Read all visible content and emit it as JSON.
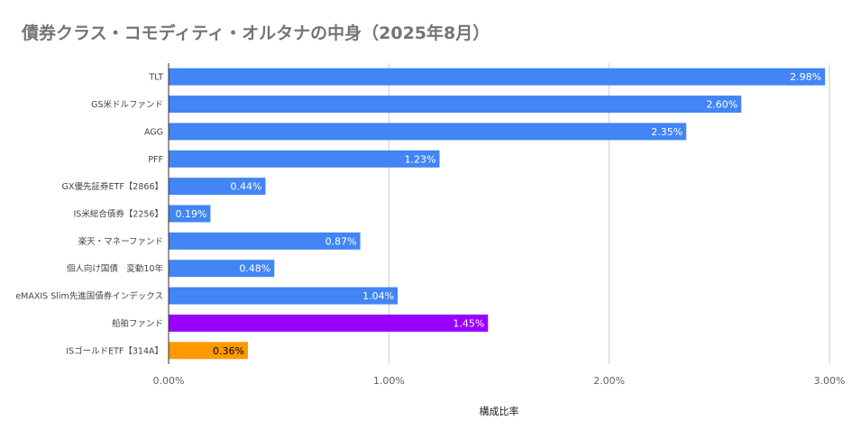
{
  "chart_data": {
    "type": "bar",
    "orientation": "horizontal",
    "title": "債券クラス・コモディティ・オルタナの中身（2025年8月）",
    "xlabel": "構成比率",
    "ylabel": "",
    "xlim": [
      0,
      3.0
    ],
    "x_ticks": [
      0,
      1,
      2,
      3
    ],
    "x_tick_labels": [
      "0.00%",
      "1.00%",
      "2.00%",
      "3.00%"
    ],
    "grid": true,
    "categories": [
      "TLT",
      "GS米ドルファンド",
      "AGG",
      "PFF",
      "GX優先証券ETF【2866】",
      "IS米総合債券【2256】",
      "楽天・マネーファンド",
      "個人向け国債　変動10年",
      "eMAXIS Slim先進国債券インデックス",
      "船舶ファンド",
      "ISゴールドETF【314A】"
    ],
    "values": [
      2.98,
      2.6,
      2.35,
      1.23,
      0.44,
      0.19,
      0.87,
      0.48,
      1.04,
      1.45,
      0.36
    ],
    "value_labels": [
      "2.98%",
      "2.60%",
      "2.35%",
      "1.23%",
      "0.44%",
      "0.19%",
      "0.87%",
      "0.48%",
      "1.04%",
      "1.45%",
      "0.36%"
    ],
    "bar_colors": [
      "#4285f4",
      "#4285f4",
      "#4285f4",
      "#4285f4",
      "#4285f4",
      "#4285f4",
      "#4285f4",
      "#4285f4",
      "#4285f4",
      "#9900ff",
      "#ff9900"
    ],
    "label_colors": [
      "#ffffff",
      "#ffffff",
      "#ffffff",
      "#ffffff",
      "#ffffff",
      "#ffffff",
      "#ffffff",
      "#ffffff",
      "#ffffff",
      "#ffffff",
      "#000000"
    ]
  }
}
